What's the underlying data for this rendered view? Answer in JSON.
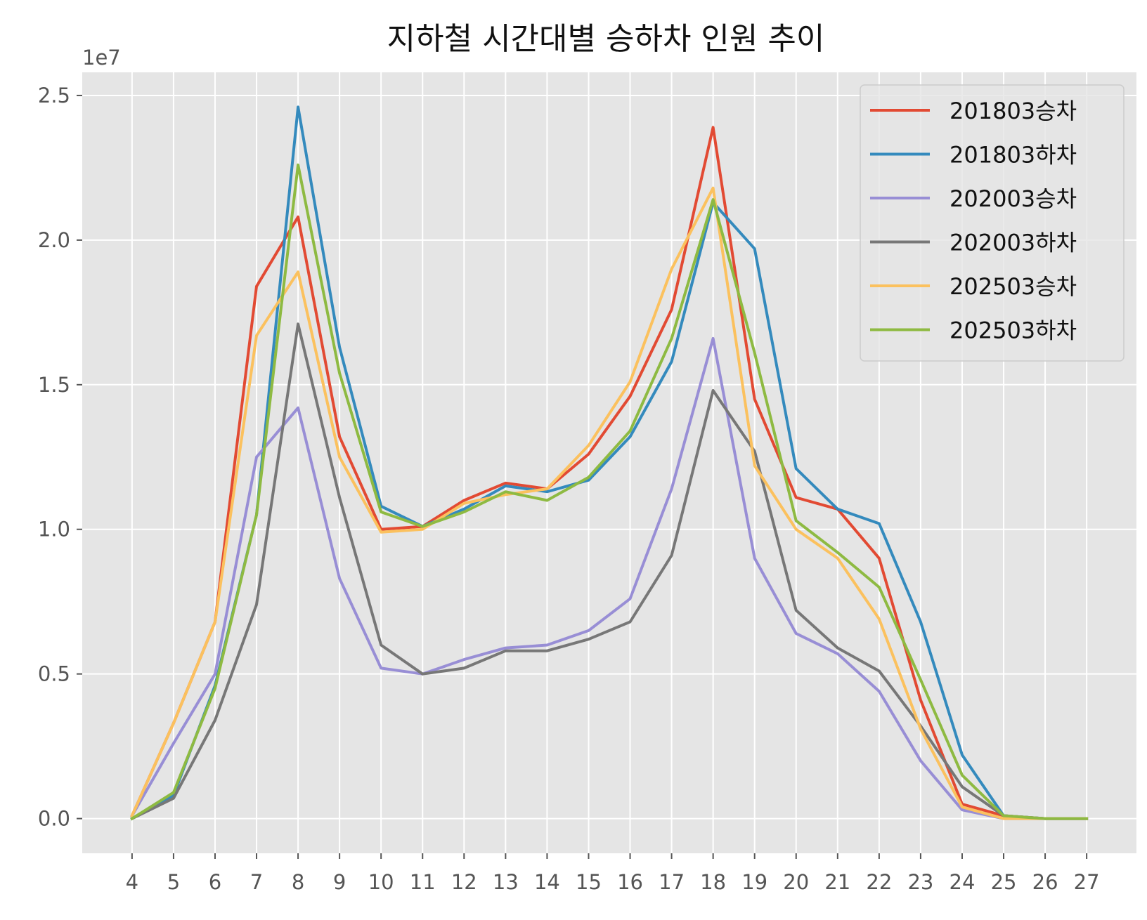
{
  "chart_data": {
    "type": "line",
    "title": "지하철 시간대별 승하차 인원 추이",
    "xlabel": "",
    "ylabel": "",
    "y_offset_label": "1e7",
    "y_scale": 10000000,
    "x": [
      4,
      5,
      6,
      7,
      8,
      9,
      10,
      11,
      12,
      13,
      14,
      15,
      16,
      17,
      18,
      19,
      20,
      21,
      22,
      23,
      24,
      25,
      26,
      27
    ],
    "xticks": [
      "4",
      "5",
      "6",
      "7",
      "8",
      "9",
      "10",
      "11",
      "12",
      "13",
      "14",
      "15",
      "16",
      "17",
      "18",
      "19",
      "20",
      "21",
      "22",
      "23",
      "24",
      "25",
      "26",
      "27"
    ],
    "yticks": [
      0.0,
      0.5,
      1.0,
      1.5,
      2.0,
      2.5
    ],
    "ytick_labels": [
      "0.0",
      "0.5",
      "1.0",
      "1.5",
      "2.0",
      "2.5"
    ],
    "xlim": [
      2.8,
      28.2
    ],
    "ylim": [
      -0.12,
      2.58
    ],
    "grid": true,
    "legend_position": "top-right",
    "series": [
      {
        "name": "201803승차",
        "color": "#E24A33",
        "values": [
          0.01,
          0.33,
          0.68,
          1.84,
          2.08,
          1.32,
          1.0,
          1.01,
          1.1,
          1.16,
          1.14,
          1.26,
          1.46,
          1.76,
          2.39,
          1.45,
          1.11,
          1.07,
          0.9,
          0.41,
          0.05,
          0.01,
          0.0,
          0.0
        ]
      },
      {
        "name": "201803하차",
        "color": "#348ABD",
        "values": [
          0.0,
          0.08,
          0.46,
          1.05,
          2.46,
          1.63,
          1.08,
          1.01,
          1.07,
          1.15,
          1.13,
          1.17,
          1.32,
          1.58,
          2.13,
          1.97,
          1.21,
          1.07,
          1.02,
          0.68,
          0.22,
          0.01,
          0.0,
          0.0
        ]
      },
      {
        "name": "202003승차",
        "color": "#988ED5",
        "values": [
          0.01,
          0.26,
          0.5,
          1.25,
          1.42,
          0.83,
          0.52,
          0.5,
          0.55,
          0.59,
          0.6,
          0.65,
          0.76,
          1.14,
          1.66,
          0.9,
          0.64,
          0.57,
          0.44,
          0.2,
          0.03,
          0.0,
          0.0,
          0.0
        ]
      },
      {
        "name": "202003하차",
        "color": "#777777",
        "values": [
          0.0,
          0.07,
          0.34,
          0.74,
          1.71,
          1.11,
          0.6,
          0.5,
          0.52,
          0.58,
          0.58,
          0.62,
          0.68,
          0.91,
          1.48,
          1.27,
          0.72,
          0.59,
          0.51,
          0.32,
          0.11,
          0.01,
          0.0,
          0.0
        ]
      },
      {
        "name": "202503승차",
        "color": "#FBC15E",
        "values": [
          0.01,
          0.33,
          0.68,
          1.67,
          1.89,
          1.25,
          0.99,
          1.0,
          1.09,
          1.12,
          1.14,
          1.29,
          1.51,
          1.9,
          2.18,
          1.22,
          1.0,
          0.9,
          0.69,
          0.31,
          0.04,
          0.0,
          0.0,
          0.0
        ]
      },
      {
        "name": "202503하차",
        "color": "#8EBA42",
        "values": [
          0.0,
          0.09,
          0.45,
          1.05,
          2.26,
          1.54,
          1.06,
          1.01,
          1.06,
          1.13,
          1.1,
          1.18,
          1.34,
          1.66,
          2.14,
          1.61,
          1.03,
          0.92,
          0.8,
          0.48,
          0.15,
          0.01,
          0.0,
          0.0
        ]
      }
    ]
  }
}
